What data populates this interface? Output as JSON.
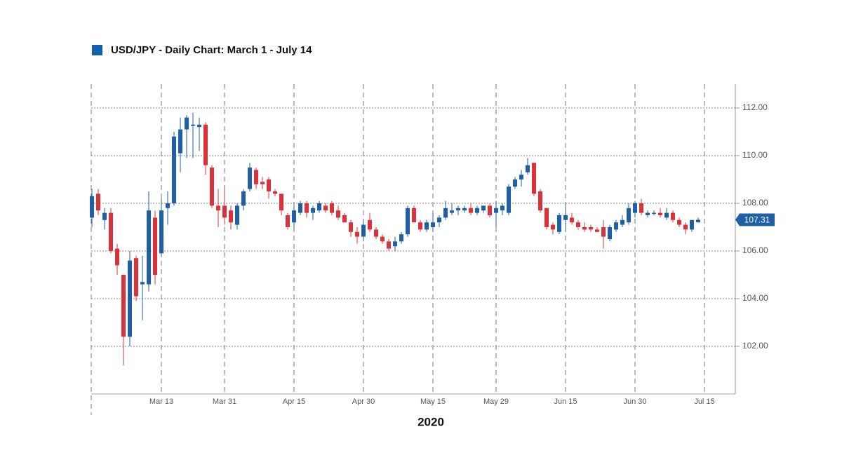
{
  "chart_data": {
    "type": "candlestick",
    "title": "USD/JPY - Daily Chart: March 1 - July 14",
    "legend_color": "#1060b0",
    "x_label": "2020",
    "up_color": "#1f5fa6",
    "down_color": "#d9323b",
    "grid": true,
    "ylim": [
      100,
      113
    ],
    "yticks": [
      {
        "value": 102,
        "label": "102.00"
      },
      {
        "value": 104,
        "label": "104.00"
      },
      {
        "value": 106,
        "label": "106.00"
      },
      {
        "value": 108,
        "label": "108.00"
      },
      {
        "value": 110,
        "label": "110.00"
      },
      {
        "value": 112,
        "label": "112.00"
      }
    ],
    "categories": [
      null,
      null,
      null,
      null,
      null,
      null,
      null,
      null,
      null,
      null,
      null,
      "Mar 13",
      null,
      null,
      null,
      null,
      null,
      null,
      null,
      null,
      null,
      "Mar 31",
      null,
      null,
      null,
      null,
      null,
      null,
      null,
      null,
      null,
      null,
      "Apr 15",
      null,
      null,
      null,
      null,
      null,
      null,
      null,
      null,
      null,
      null,
      "Apr 30",
      null,
      null,
      null,
      null,
      null,
      null,
      null,
      null,
      null,
      null,
      "May 15",
      null,
      null,
      null,
      null,
      null,
      null,
      null,
      null,
      null,
      "May 29",
      null,
      null,
      null,
      null,
      null,
      null,
      null,
      null,
      null,
      null,
      "Jun 15",
      null,
      null,
      null,
      null,
      null,
      null,
      null,
      null,
      null,
      null,
      "Jun 30",
      null,
      null,
      null,
      null,
      null,
      null,
      null,
      null,
      null,
      null,
      "Jul 15"
    ],
    "open": [
      107.4,
      108.4,
      107.3,
      107.6,
      106.1,
      105.0,
      102.4,
      105.7,
      104.6,
      104.6,
      107.4,
      105.9,
      107.8,
      108.0,
      110.1,
      111.1,
      111.25,
      111.2,
      111.3,
      109.5,
      107.9,
      107.9,
      107.7,
      107.1,
      107.9,
      108.6,
      109.4,
      108.9,
      109.0,
      108.5,
      108.4,
      107.5,
      107.2,
      107.6,
      108.0,
      107.6,
      107.7,
      107.9,
      108.0,
      107.7,
      107.5,
      107.2,
      106.8,
      106.6,
      107.3,
      106.9,
      106.6,
      106.4,
      106.2,
      106.4,
      106.7,
      107.8,
      107.2,
      106.9,
      107.0,
      107.2,
      107.4,
      107.6,
      107.7,
      107.7,
      107.8,
      107.6,
      107.7,
      107.9,
      107.6,
      107.7,
      107.6,
      108.7,
      109.0,
      109.3,
      109.7,
      108.5,
      107.8,
      107.1,
      106.8,
      107.3,
      107.4,
      107.2,
      107.0,
      107.0,
      106.9,
      107.0,
      106.5,
      106.9,
      107.1,
      107.2,
      107.6,
      108.0,
      107.5,
      107.6,
      107.6,
      107.4,
      107.6,
      107.3,
      107.1,
      106.9,
      107.2,
      null
    ],
    "high": [
      108.6,
      108.6,
      107.8,
      107.8,
      106.3,
      105.0,
      106.0,
      105.8,
      105.8,
      108.5,
      107.7,
      108.2,
      108.5,
      111.0,
      111.6,
      111.7,
      111.8,
      111.6,
      111.4,
      109.6,
      108.6,
      108.7,
      107.9,
      108.0,
      108.6,
      109.7,
      109.5,
      109.1,
      109.1,
      108.6,
      108.4,
      107.6,
      107.9,
      108.1,
      108.1,
      107.9,
      108.1,
      108.0,
      108.1,
      107.9,
      107.6,
      107.3,
      107.0,
      107.3,
      107.6,
      107.0,
      106.7,
      106.5,
      106.6,
      106.8,
      107.9,
      107.9,
      107.3,
      107.3,
      107.6,
      107.5,
      108.1,
      108.0,
      107.9,
      107.9,
      108.0,
      107.9,
      107.9,
      108.0,
      108.1,
      108.0,
      108.8,
      109.1,
      109.4,
      109.9,
      109.7,
      108.6,
      107.8,
      107.2,
      107.6,
      108.0,
      107.6,
      107.3,
      107.2,
      107.1,
      107.0,
      107.3,
      107.1,
      107.3,
      107.5,
      108.0,
      108.1,
      108.2,
      107.7,
      107.7,
      107.8,
      107.8,
      107.7,
      107.4,
      107.2,
      107.3,
      107.4,
      null
    ],
    "low": [
      107.0,
      107.5,
      106.9,
      105.9,
      105.0,
      101.2,
      102.0,
      103.9,
      103.1,
      104.3,
      104.6,
      105.8,
      107.1,
      107.9,
      109.3,
      109.9,
      109.9,
      110.2,
      109.2,
      107.8,
      107.0,
      107.1,
      106.9,
      106.9,
      107.7,
      108.5,
      108.6,
      108.6,
      108.2,
      108.3,
      107.5,
      106.9,
      106.9,
      107.5,
      107.4,
      107.3,
      107.6,
      107.6,
      107.5,
      107.3,
      107.2,
      106.6,
      106.3,
      106.4,
      106.8,
      106.5,
      106.3,
      106.0,
      106.0,
      106.3,
      106.6,
      107.2,
      106.8,
      106.8,
      106.8,
      107.0,
      107.3,
      107.5,
      107.5,
      107.6,
      107.5,
      107.5,
      107.6,
      107.4,
      107.0,
      107.5,
      107.5,
      108.6,
      108.7,
      109.2,
      108.3,
      107.6,
      106.9,
      106.7,
      106.7,
      106.8,
      107.1,
      106.9,
      106.8,
      106.8,
      106.8,
      106.1,
      106.4,
      106.8,
      107.0,
      107.1,
      107.4,
      107.5,
      107.4,
      107.5,
      107.4,
      107.3,
      107.2,
      107.0,
      106.7,
      106.8,
      107.2,
      null
    ],
    "close": [
      108.3,
      107.7,
      107.6,
      106.0,
      105.4,
      102.4,
      105.6,
      104.1,
      104.7,
      107.7,
      105.0,
      107.7,
      108.0,
      110.8,
      111.1,
      111.6,
      111.3,
      111.3,
      109.6,
      107.9,
      107.7,
      107.4,
      107.2,
      107.9,
      108.5,
      109.5,
      108.8,
      108.8,
      108.5,
      108.4,
      107.7,
      107.0,
      107.7,
      108.0,
      107.6,
      107.8,
      108.0,
      107.7,
      107.6,
      107.4,
      107.2,
      106.8,
      106.6,
      107.1,
      106.9,
      106.6,
      106.4,
      106.1,
      106.4,
      106.7,
      107.8,
      107.2,
      106.9,
      107.2,
      107.2,
      107.4,
      107.8,
      107.7,
      107.8,
      107.8,
      107.6,
      107.8,
      107.9,
      107.5,
      107.8,
      107.9,
      108.7,
      109.0,
      109.2,
      109.6,
      108.4,
      107.7,
      107.0,
      106.9,
      107.5,
      107.5,
      107.2,
      107.0,
      106.9,
      106.9,
      106.8,
      106.6,
      107.0,
      107.2,
      107.3,
      107.8,
      108.0,
      107.6,
      107.6,
      107.6,
      107.5,
      107.6,
      107.3,
      107.1,
      106.9,
      107.3,
      107.31,
      null
    ]
  }
}
